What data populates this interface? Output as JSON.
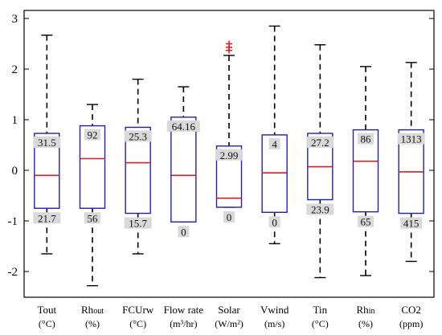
{
  "chart_data": {
    "type": "boxplot",
    "ylim": [
      -2.5,
      3.2
    ],
    "yticks": [
      -2,
      -1,
      0,
      1,
      2,
      3
    ],
    "grid": false,
    "colors": {
      "box": "#1f1fbf",
      "median": "#cc2222",
      "whisker": "#000000",
      "outlier": "#dd2222",
      "label_bg": "#d9d9d9"
    },
    "categories": [
      {
        "name": "Tout",
        "name_sub": "",
        "unit": "(°C)",
        "whisker_low": -1.65,
        "q1": -0.75,
        "median": -0.1,
        "q3": 0.73,
        "whisker_high": 2.67,
        "outliers": [],
        "upper_label": "31.5",
        "lower_label": "21.7"
      },
      {
        "name": "Rh",
        "name_sub": "out",
        "unit": "(%)",
        "whisker_low": -2.28,
        "q1": -0.75,
        "median": 0.23,
        "q3": 0.88,
        "whisker_high": 1.3,
        "outliers": [],
        "upper_label": "92",
        "lower_label": "56"
      },
      {
        "name": "FCUrw",
        "name_sub": "",
        "unit": "(°C)",
        "whisker_low": -1.65,
        "q1": -0.85,
        "median": 0.15,
        "q3": 0.85,
        "whisker_high": 1.8,
        "outliers": [],
        "upper_label": "25.3",
        "lower_label": "15.7"
      },
      {
        "name": "Flow rate",
        "name_sub": "",
        "unit": "(m³/hr)",
        "whisker_low": -1.02,
        "q1": -1.02,
        "median": -0.1,
        "q3": 1.05,
        "whisker_high": 1.65,
        "outliers": [],
        "upper_label": "64.16",
        "lower_label": "0"
      },
      {
        "name": "Solar",
        "name_sub": "",
        "unit": "(W/m²)",
        "whisker_low": -0.73,
        "q1": -0.73,
        "median": -0.55,
        "q3": 0.48,
        "whisker_high": 2.27,
        "outliers": [
          2.37,
          2.43,
          2.5
        ],
        "upper_label": "2.99",
        "lower_label": "0"
      },
      {
        "name": "Vwind",
        "name_sub": "",
        "unit": "(m/s)",
        "whisker_low": -1.45,
        "q1": -0.83,
        "median": -0.05,
        "q3": 0.7,
        "whisker_high": 2.85,
        "outliers": [],
        "upper_label": "4",
        "lower_label": "0"
      },
      {
        "name": "Tin",
        "name_sub": "",
        "unit": "(°C)",
        "whisker_low": -2.12,
        "q1": -0.58,
        "median": 0.07,
        "q3": 0.73,
        "whisker_high": 2.48,
        "outliers": [],
        "upper_label": "27.2",
        "lower_label": "23.9"
      },
      {
        "name": "Rh",
        "name_sub": "in",
        "unit": "(%)",
        "whisker_low": -2.08,
        "q1": -0.82,
        "median": 0.18,
        "q3": 0.8,
        "whisker_high": 2.05,
        "outliers": [],
        "upper_label": "86",
        "lower_label": "65"
      },
      {
        "name": "CO2",
        "name_sub": "",
        "unit": "(ppm)",
        "whisker_low": -1.8,
        "q1": -0.85,
        "median": -0.03,
        "q3": 0.8,
        "whisker_high": 2.13,
        "outliers": [],
        "upper_label": "1313",
        "lower_label": "415"
      }
    ]
  }
}
